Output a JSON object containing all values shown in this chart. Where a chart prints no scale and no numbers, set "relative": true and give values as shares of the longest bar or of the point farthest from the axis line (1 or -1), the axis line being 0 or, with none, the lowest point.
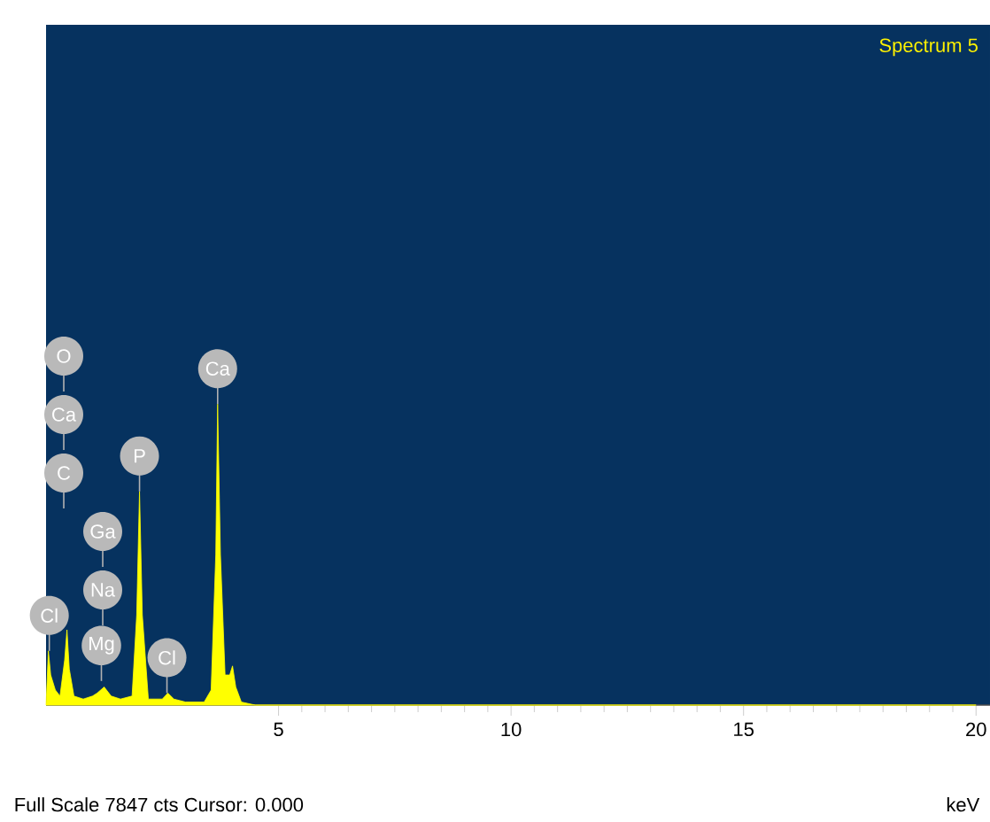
{
  "chart_data": {
    "type": "area",
    "title": "Spectrum 5",
    "xlabel": "keV",
    "relative": true,
    "xlim": [
      0,
      20.3
    ],
    "xticks": [
      5,
      10,
      15,
      20
    ],
    "series": [
      {
        "color": "#ffff00",
        "x": [
          0,
          0.05,
          0.1,
          0.2,
          0.3,
          0.4,
          0.45,
          0.5,
          0.6,
          0.8,
          1.0,
          1.1,
          1.25,
          1.4,
          1.6,
          1.85,
          1.95,
          2.01,
          2.07,
          2.2,
          2.5,
          2.62,
          2.75,
          3.0,
          3.4,
          3.55,
          3.65,
          3.69,
          3.75,
          3.85,
          3.95,
          4.01,
          4.08,
          4.2,
          4.5,
          5,
          20
        ],
        "values": [
          0,
          0.18,
          0.1,
          0.05,
          0.03,
          0.15,
          0.25,
          0.12,
          0.03,
          0.02,
          0.03,
          0.04,
          0.06,
          0.03,
          0.02,
          0.03,
          0.3,
          0.71,
          0.3,
          0.02,
          0.02,
          0.04,
          0.02,
          0.01,
          0.01,
          0.05,
          0.5,
          1,
          0.5,
          0.1,
          0.1,
          0.13,
          0.06,
          0.01,
          0,
          0,
          0
        ]
      }
    ],
    "annotations": [
      "O",
      "Ca",
      "C",
      "Ga",
      "Na",
      {
        "text": "Cl",
        "x": 0.07,
        "y": 0.18
      },
      {
        "text": "Mg",
        "x": 1.19,
        "y": 0.08
      },
      {
        "text": "P",
        "x": 2.01,
        "y": 0.71
      },
      {
        "text": "Cl",
        "x": 2.6,
        "y": 0.04
      },
      {
        "text": "Ca",
        "x": 3.69,
        "y": 1.0
      },
      "Full Scale 7847 cts Cursor: 0.000"
    ]
  }
}
